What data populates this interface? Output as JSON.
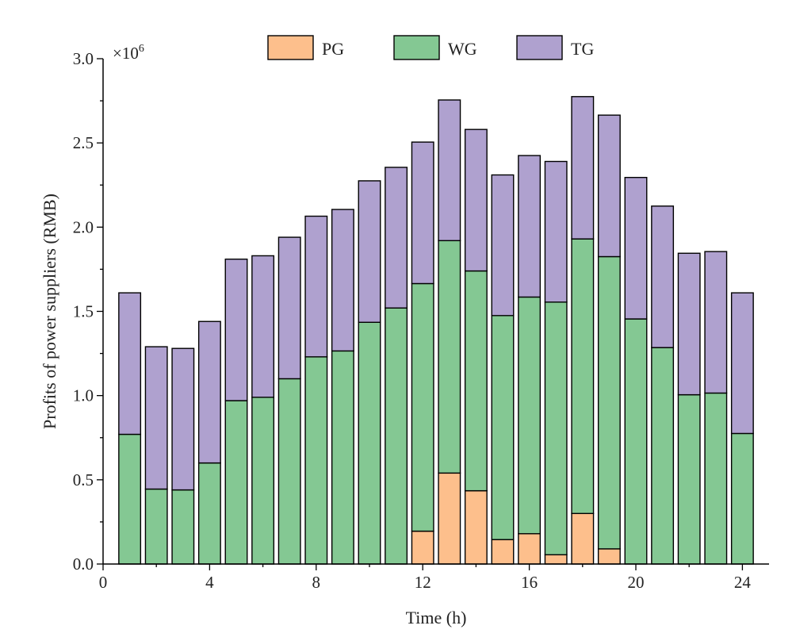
{
  "chart_data": {
    "type": "bar",
    "stacked": true,
    "x": [
      1,
      2,
      3,
      4,
      5,
      6,
      7,
      8,
      9,
      10,
      11,
      12,
      13,
      14,
      15,
      16,
      17,
      18,
      19,
      20,
      21,
      22,
      23,
      24
    ],
    "series": [
      {
        "name": "PG",
        "color": "#FDBF8C",
        "values": [
          0,
          0,
          0,
          0,
          0,
          0,
          0,
          0,
          0,
          0,
          0,
          0.195,
          0.54,
          0.435,
          0.145,
          0.18,
          0.055,
          0.3,
          0.09,
          0,
          0,
          0,
          0,
          0
        ]
      },
      {
        "name": "WG",
        "color": "#84C893",
        "values": [
          0.77,
          0.445,
          0.44,
          0.6,
          0.97,
          0.99,
          1.1,
          1.23,
          1.265,
          1.435,
          1.52,
          1.47,
          1.38,
          1.305,
          1.33,
          1.405,
          1.5,
          1.63,
          1.735,
          1.455,
          1.285,
          1.005,
          1.015,
          0.775
        ]
      },
      {
        "name": "TG",
        "color": "#AFA1CF",
        "values": [
          0.84,
          0.845,
          0.84,
          0.84,
          0.84,
          0.84,
          0.84,
          0.835,
          0.84,
          0.84,
          0.835,
          0.84,
          0.835,
          0.84,
          0.835,
          0.84,
          0.835,
          0.845,
          0.84,
          0.84,
          0.84,
          0.84,
          0.84,
          0.835
        ]
      }
    ],
    "xlabel": "Time (h)",
    "ylabel": "Profits of power suppliers (RMB)",
    "y_multiplier": "×10",
    "y_multiplier_exp": "6",
    "xlim": [
      0,
      25
    ],
    "ylim": [
      0,
      3.0
    ],
    "xticks": [
      0,
      4,
      8,
      12,
      16,
      20,
      24
    ],
    "yticks": [
      0.0,
      0.5,
      1.0,
      1.5,
      2.0,
      2.5,
      3.0
    ],
    "ytick_labels": [
      "0.0",
      "0.5",
      "1.0",
      "1.5",
      "2.0",
      "2.5",
      "3.0"
    ],
    "grid": false,
    "legend_position": "top"
  }
}
